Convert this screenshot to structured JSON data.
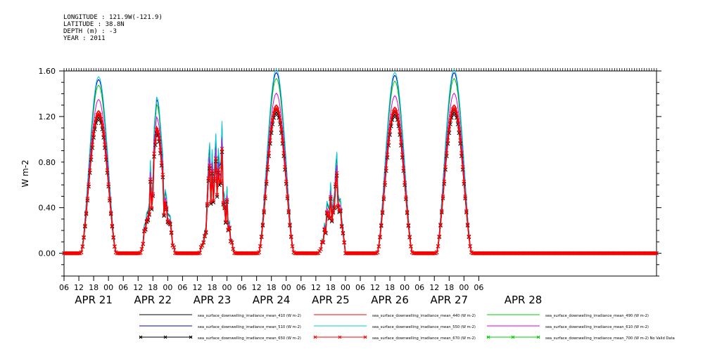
{
  "header": {
    "lines": [
      "LONGITUDE : 121.9W(-121.9)",
      "LATITUDE : 38.8N",
      "DEPTH (m) : -3",
      "YEAR : 2011"
    ]
  },
  "chart_data": {
    "type": "line",
    "title": "",
    "xlabel": "",
    "ylabel": "W m-2",
    "ylim": [
      -0.2,
      1.6
    ],
    "yticks": [
      "0.00",
      "0.40",
      "0.80",
      "1.20",
      "1.60"
    ],
    "xlim_hours": [
      6,
      246
    ],
    "xticks_hours": [
      "06",
      "12",
      "18",
      "00",
      "06",
      "12",
      "18",
      "00",
      "06",
      "12",
      "18",
      "00",
      "06",
      "12",
      "18",
      "00",
      "06",
      "12",
      "18",
      "00",
      "06",
      "12",
      "18",
      "00",
      "06",
      "12",
      "18",
      "00",
      "06"
    ],
    "date_labels": [
      "APR 21",
      "APR 22",
      "APR 23",
      "APR 24",
      "APR 25",
      "APR 26",
      "APR 27",
      "APR 28"
    ],
    "days": [
      {
        "peak": 1.25,
        "shape": "clear"
      },
      {
        "peak": 0.95,
        "shape": "cloudy"
      },
      {
        "peak": 1.05,
        "shape": "cloudy2"
      },
      {
        "peak": 1.3,
        "shape": "clear"
      },
      {
        "peak": 0.55,
        "shape": "cloudy3"
      },
      {
        "peak": 1.28,
        "shape": "clear"
      },
      {
        "peak": 1.3,
        "shape": "clear"
      }
    ],
    "series": [
      {
        "name": "sea_surface_downwelling_irradiance_mean_410 (W m-2)",
        "color": "#000000",
        "scale": 0.97
      },
      {
        "name": "sea_surface_downwelling_irradiance_mean_440 (W m-2)",
        "color": "#ff0000",
        "scale": 1.0
      },
      {
        "name": "sea_surface_downwelling_irradiance_mean_490 (W m-2)",
        "color": "#00cc00",
        "scale": 1.18
      },
      {
        "name": "sea_surface_downwelling_irradiance_mean_510 (W m-2)",
        "color": "#0000cc",
        "scale": 1.22
      },
      {
        "name": "sea_surface_downwelling_irradiance_mean_550 (W m-2)",
        "color": "#00cccc",
        "scale": 1.24
      },
      {
        "name": "sea_surface_downwelling_irradiance_mean_610 (W m-2)",
        "color": "#dd00dd",
        "scale": 1.08
      },
      {
        "name": "sea_surface_downwelling_irradiance_mean_650 (W m-2)",
        "color": "#000000",
        "scale": 0.95,
        "marker": "x"
      },
      {
        "name": "sea_surface_downwelling_irradiance_mean_670 (W m-2)",
        "color": "#ff0000",
        "scale": 0.98,
        "marker": "x"
      },
      {
        "name": "sea_surface_downwelling_irradiance_mean_700 (W m-2) No Valid Data",
        "color": "#00cc00",
        "scale": 0.0,
        "marker": "x"
      }
    ]
  }
}
